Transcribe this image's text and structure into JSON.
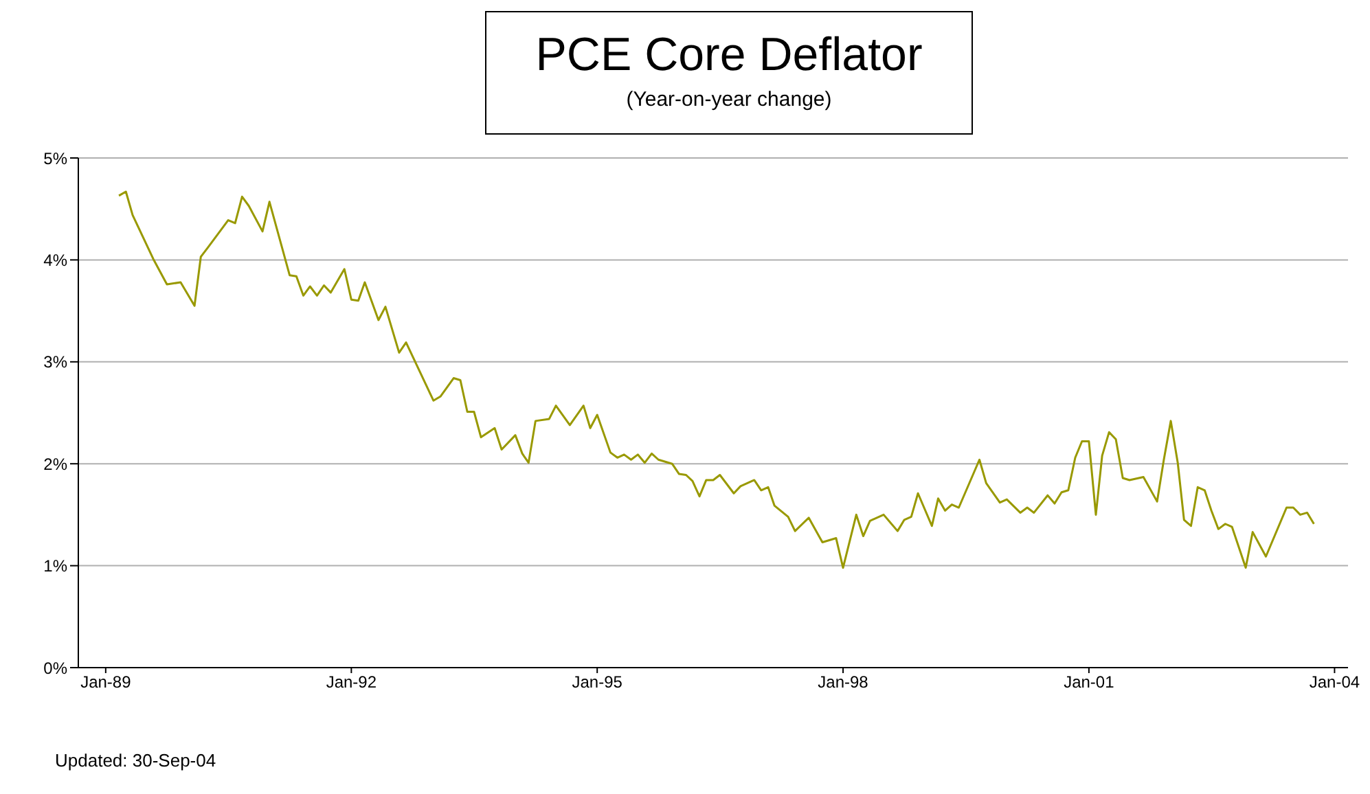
{
  "chart_data": {
    "type": "line",
    "title": "PCE Core Deflator",
    "subtitle": "(Year-on-year change)",
    "annotations": [
      "Updated: 30-Sep-04"
    ],
    "series": [
      {
        "color": "#999900",
        "x": [
          "1989-03",
          "1989-04",
          "1989-05",
          "1989-08",
          "1989-10",
          "1989-12",
          "1990-02",
          "1990-03",
          "1990-04",
          "1990-07",
          "1990-08",
          "1990-09",
          "1990-10",
          "1990-12",
          "1991-01",
          "1991-04",
          "1991-05",
          "1991-06",
          "1991-07",
          "1991-08",
          "1991-09",
          "1991-10",
          "1991-12",
          "1992-01",
          "1992-02",
          "1992-03",
          "1992-05",
          "1992-06",
          "1992-08",
          "1992-09",
          "1993-01",
          "1993-02",
          "1993-04",
          "1993-05",
          "1993-06",
          "1993-07",
          "1993-08",
          "1993-10",
          "1993-11",
          "1994-01",
          "1994-02",
          "1994-03",
          "1994-04",
          "1994-06",
          "1994-07",
          "1994-09",
          "1994-11",
          "1994-12",
          "1995-01",
          "1995-03",
          "1995-04",
          "1995-05",
          "1995-06",
          "1995-07",
          "1995-08",
          "1995-09",
          "1995-10",
          "1995-12",
          "1996-01",
          "1996-02",
          "1996-03",
          "1996-04",
          "1996-05",
          "1996-06",
          "1996-07",
          "1996-09",
          "1996-10",
          "1996-12",
          "1997-01",
          "1997-02",
          "1997-03",
          "1997-05",
          "1997-06",
          "1997-08",
          "1997-10",
          "1997-12",
          "1998-01",
          "1998-03",
          "1998-04",
          "1998-05",
          "1998-07",
          "1998-09",
          "1998-10",
          "1998-11",
          "1998-12",
          "1999-02",
          "1999-03",
          "1999-04",
          "1999-05",
          "1999-06",
          "1999-09",
          "1999-10",
          "1999-12",
          "2000-01",
          "2000-03",
          "2000-04",
          "2000-05",
          "2000-07",
          "2000-08",
          "2000-09",
          "2000-10",
          "2000-11",
          "2000-12",
          "2001-01",
          "2001-02",
          "2001-03",
          "2001-04",
          "2001-05",
          "2001-06",
          "2001-07",
          "2001-09",
          "2001-11",
          "2001-12",
          "2002-01",
          "2002-02",
          "2002-03",
          "2002-04",
          "2002-05",
          "2002-06",
          "2002-07",
          "2002-08",
          "2002-09",
          "2002-10",
          "2002-12",
          "2003-01",
          "2003-03",
          "2003-06",
          "2003-07",
          "2003-08",
          "2003-09",
          "2003-10"
        ],
        "values": [
          4.63,
          4.67,
          4.44,
          4.01,
          3.76,
          3.78,
          3.55,
          4.03,
          4.12,
          4.39,
          4.36,
          4.62,
          4.53,
          4.28,
          4.57,
          3.85,
          3.84,
          3.65,
          3.74,
          3.65,
          3.75,
          3.68,
          3.91,
          3.61,
          3.6,
          3.78,
          3.41,
          3.54,
          3.09,
          3.19,
          2.62,
          2.66,
          2.84,
          2.82,
          2.51,
          2.51,
          2.26,
          2.35,
          2.14,
          2.28,
          2.1,
          2.01,
          2.42,
          2.44,
          2.57,
          2.38,
          2.57,
          2.35,
          2.48,
          2.11,
          2.06,
          2.09,
          2.04,
          2.09,
          2.01,
          2.1,
          2.04,
          2.0,
          1.9,
          1.89,
          1.83,
          1.68,
          1.84,
          1.84,
          1.89,
          1.71,
          1.78,
          1.84,
          1.74,
          1.77,
          1.59,
          1.48,
          1.34,
          1.47,
          1.23,
          1.27,
          0.98,
          1.5,
          1.29,
          1.44,
          1.5,
          1.34,
          1.45,
          1.48,
          1.71,
          1.39,
          1.66,
          1.54,
          1.6,
          1.57,
          2.04,
          1.81,
          1.62,
          1.65,
          1.52,
          1.57,
          1.52,
          1.69,
          1.61,
          1.72,
          1.74,
          2.06,
          2.22,
          2.22,
          1.5,
          2.08,
          2.31,
          2.24,
          1.86,
          1.84,
          1.87,
          1.63,
          2.04,
          2.42,
          2.01,
          1.45,
          1.39,
          1.77,
          1.74,
          1.54,
          1.36,
          1.41,
          1.38,
          0.98,
          1.33,
          1.09,
          1.57,
          1.57,
          1.5,
          1.52,
          1.41
        ]
      }
    ],
    "xlim": [
      "1988-09",
      "2004-03"
    ],
    "xticks": [
      {
        "value": "1989-01",
        "label": "Jan-89"
      },
      {
        "value": "1992-01",
        "label": "Jan-92"
      },
      {
        "value": "1995-01",
        "label": "Jan-95"
      },
      {
        "value": "1998-01",
        "label": "Jan-98"
      },
      {
        "value": "2001-01",
        "label": "Jan-01"
      },
      {
        "value": "2004-01",
        "label": "Jan-04"
      }
    ],
    "ylim": [
      0,
      5
    ],
    "yticks": [
      {
        "value": 0,
        "label": "0%"
      },
      {
        "value": 1,
        "label": "1%"
      },
      {
        "value": 2,
        "label": "2%"
      },
      {
        "value": 3,
        "label": "3%"
      },
      {
        "value": 4,
        "label": "4%"
      },
      {
        "value": 5,
        "label": "5%"
      }
    ],
    "grid": "y",
    "marker": "none",
    "line_style": "solid"
  }
}
